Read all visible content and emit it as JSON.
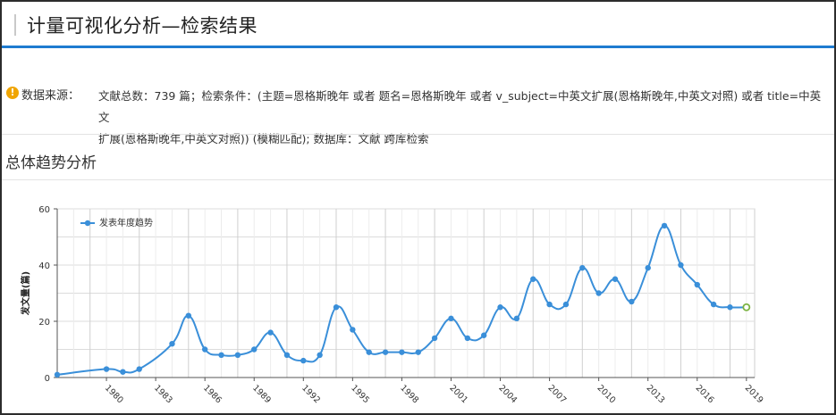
{
  "header": {
    "title": "计量可视化分析—检索结果"
  },
  "source": {
    "label": "数据来源：",
    "line1": "文献总数：739 篇；检索条件：(主题=恩格斯晚年 或者 题名=恩格斯晚年 或者 v_subject=中英文扩展(恩格斯晚年,中英文对照) 或者 title=中英文",
    "line2": "扩展(恩格斯晚年,中英文对照)) (模糊匹配); 数据库：文献 跨库检索"
  },
  "section": {
    "title": "总体趋势分析"
  },
  "colors": {
    "accent": "#1e7bd0",
    "series": "#3a8fd9",
    "last_point": "#7cb342",
    "warning": "#f0a500"
  },
  "chart_data": {
    "type": "line",
    "ylabel": "发文量(篇)",
    "ylim": [
      0,
      60
    ],
    "yticks": [
      0,
      20,
      40,
      60
    ],
    "legend": "top-left",
    "grid": true,
    "xlim": [
      1977,
      2019.5
    ],
    "xticks": [
      "1980",
      "1983",
      "1986",
      "1989",
      "1992",
      "1995",
      "1998",
      "2001",
      "2004",
      "2007",
      "2010",
      "2013",
      "2016",
      "2019"
    ],
    "series": [
      {
        "name": "发表年度趋势",
        "x": [
          1977,
          1980,
          1981,
          1982,
          1984,
          1985,
          1986,
          1987,
          1988,
          1989,
          1990,
          1991,
          1992,
          1993,
          1994,
          1995,
          1996,
          1997,
          1998,
          1999,
          2000,
          2001,
          2002,
          2003,
          2004,
          2005,
          2006,
          2007,
          2008,
          2009,
          2010,
          2011,
          2012,
          2013,
          2014,
          2015,
          2016,
          2017,
          2018,
          2019
        ],
        "values": [
          1,
          3,
          2,
          3,
          12,
          22,
          10,
          8,
          8,
          10,
          16,
          8,
          6,
          8,
          25,
          17,
          9,
          9,
          9,
          9,
          14,
          21,
          14,
          15,
          25,
          21,
          35,
          26,
          26,
          39,
          30,
          35,
          27,
          39,
          54,
          40,
          33,
          26,
          25,
          25
        ]
      }
    ]
  }
}
